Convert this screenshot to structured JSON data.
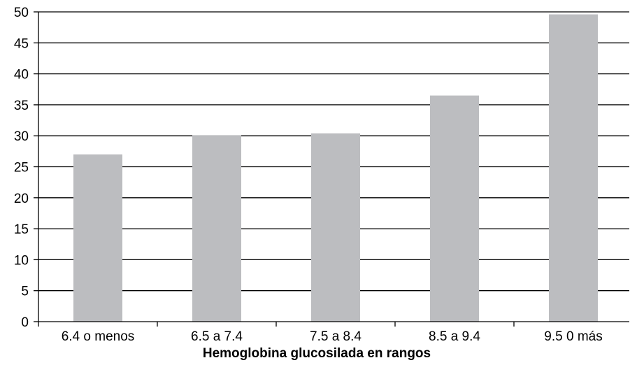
{
  "chart_data": {
    "type": "bar",
    "title": "",
    "xlabel": "Hemoglobina glucosilada en rangos",
    "ylabel": "",
    "categories": [
      "6.4 o menos",
      "6.5 a 7.4",
      "7.5 a 8.4",
      "8.5 a 9.4",
      "9.5 0 más"
    ],
    "series": [
      {
        "values": [
          27.0,
          30.1,
          30.4,
          36.5,
          49.6
        ],
        "color": "#bcbdc0"
      }
    ],
    "ylim": [
      0,
      50
    ],
    "yticks": [
      0,
      5,
      10,
      15,
      20,
      25,
      30,
      35,
      40,
      45,
      50
    ],
    "grid": true,
    "legend": "none"
  }
}
